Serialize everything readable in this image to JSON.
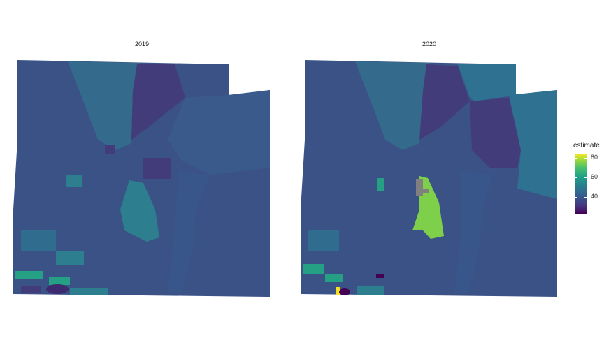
{
  "facets": [
    {
      "title": "2019"
    },
    {
      "title": "2020"
    }
  ],
  "legend": {
    "title": "estimate",
    "ticks": [
      "80",
      "60",
      "40"
    ],
    "colors": {
      "low": "#440154",
      "mid": "#21918c",
      "high": "#fde725",
      "na": "#808080"
    }
  },
  "region_colors": {
    "base": "#3b5287",
    "teal_north": "#346a8b",
    "dark_purple": "#433c7a",
    "teal_mid": "#2d7e8e",
    "green_hot": "#7ed04b",
    "yellow_max": "#f5e021",
    "missing": "#808080"
  }
}
